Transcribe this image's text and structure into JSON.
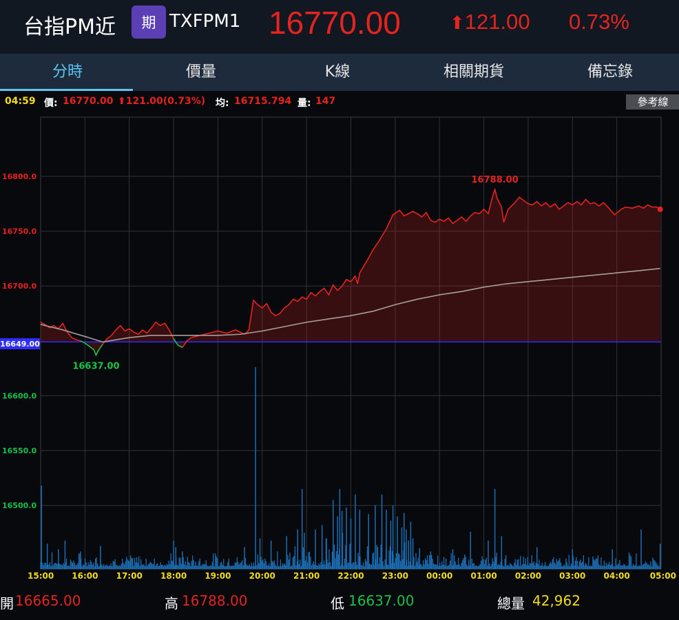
{
  "header": {
    "title": "台指PM近",
    "badge": "期",
    "code": "TXFPM1",
    "price": "16770.00",
    "change": "121.00",
    "change_arrow": "⬆",
    "percent": "0.73%"
  },
  "tabs": [
    {
      "label": "分時",
      "active": true
    },
    {
      "label": "價量"
    },
    {
      "label": "K線"
    },
    {
      "label": "相關期貨"
    },
    {
      "label": "備忘錄"
    }
  ],
  "infobar": {
    "time": "04:59",
    "price_label": "價:",
    "price": "16770.00",
    "change": "⬆121.00(0.73%)",
    "avg_label": "均:",
    "avg": "16715.794",
    "vol_label": "量:",
    "vol": "147",
    "ref_button": "參考線"
  },
  "colors": {
    "up": "#e5231f",
    "down": "#19c24b",
    "avg": "#a89f9a",
    "volume": "#1b6fb6",
    "reference": "#2d2dff"
  },
  "chart_data": {
    "type": "line",
    "x_ticks": [
      "15:00",
      "16:00",
      "17:00",
      "18:00",
      "19:00",
      "20:00",
      "21:00",
      "22:00",
      "23:00",
      "00:00",
      "01:00",
      "02:00",
      "03:00",
      "04:00",
      "05:00"
    ],
    "y_ticks_up": [
      "16800.0",
      "16750.0",
      "16700.0"
    ],
    "y_ticks_down": [
      "16600.0",
      "16550.0",
      "16500.0"
    ],
    "reference": {
      "value": 16649,
      "label": "16649.00"
    },
    "ylim": [
      16442,
      16854
    ],
    "price_series": [
      [
        0,
        16667
      ],
      [
        0.1,
        16665
      ],
      [
        0.2,
        16662
      ],
      [
        0.3,
        16664
      ],
      [
        0.4,
        16661
      ],
      [
        0.5,
        16666
      ],
      [
        0.6,
        16658
      ],
      [
        0.7,
        16653
      ],
      [
        0.8,
        16651
      ],
      [
        0.9,
        16650
      ],
      [
        1.0,
        16648
      ],
      [
        1.1,
        16645
      ],
      [
        1.2,
        16642
      ],
      [
        1.25,
        16637
      ],
      [
        1.3,
        16641
      ],
      [
        1.4,
        16647
      ],
      [
        1.5,
        16652
      ],
      [
        1.6,
        16655
      ],
      [
        1.7,
        16660
      ],
      [
        1.8,
        16664
      ],
      [
        1.9,
        16659
      ],
      [
        2.0,
        16661
      ],
      [
        2.1,
        16658
      ],
      [
        2.2,
        16656
      ],
      [
        2.3,
        16660
      ],
      [
        2.4,
        16657
      ],
      [
        2.5,
        16662
      ],
      [
        2.6,
        16667
      ],
      [
        2.7,
        16664
      ],
      [
        2.8,
        16666
      ],
      [
        2.9,
        16660
      ],
      [
        3.0,
        16652
      ],
      [
        3.1,
        16646
      ],
      [
        3.2,
        16644
      ],
      [
        3.3,
        16650
      ],
      [
        3.4,
        16653
      ],
      [
        3.6,
        16655
      ],
      [
        3.8,
        16657
      ],
      [
        4.0,
        16659
      ],
      [
        4.2,
        16657
      ],
      [
        4.4,
        16660
      ],
      [
        4.6,
        16656
      ],
      [
        4.7,
        16660
      ],
      [
        4.8,
        16687
      ],
      [
        4.9,
        16683
      ],
      [
        5.0,
        16680
      ],
      [
        5.1,
        16684
      ],
      [
        5.2,
        16676
      ],
      [
        5.3,
        16673
      ],
      [
        5.4,
        16675
      ],
      [
        5.5,
        16680
      ],
      [
        5.6,
        16683
      ],
      [
        5.7,
        16688
      ],
      [
        5.8,
        16686
      ],
      [
        5.9,
        16690
      ],
      [
        6.0,
        16688
      ],
      [
        6.1,
        16694
      ],
      [
        6.2,
        16691
      ],
      [
        6.3,
        16695
      ],
      [
        6.4,
        16698
      ],
      [
        6.5,
        16692
      ],
      [
        6.6,
        16701
      ],
      [
        6.7,
        16696
      ],
      [
        6.8,
        16700
      ],
      [
        6.9,
        16706
      ],
      [
        7.0,
        16704
      ],
      [
        7.1,
        16709
      ],
      [
        7.15,
        16702
      ],
      [
        7.2,
        16712
      ],
      [
        7.35,
        16722
      ],
      [
        7.5,
        16733
      ],
      [
        7.65,
        16742
      ],
      [
        7.8,
        16752
      ],
      [
        7.95,
        16765
      ],
      [
        8.1,
        16769
      ],
      [
        8.2,
        16764
      ],
      [
        8.3,
        16766
      ],
      [
        8.4,
        16768
      ],
      [
        8.5,
        16766
      ],
      [
        8.6,
        16763
      ],
      [
        8.7,
        16767
      ],
      [
        8.8,
        16760
      ],
      [
        8.9,
        16758
      ],
      [
        9.0,
        16761
      ],
      [
        9.1,
        16759
      ],
      [
        9.2,
        16762
      ],
      [
        9.3,
        16757
      ],
      [
        9.4,
        16760
      ],
      [
        9.5,
        16763
      ],
      [
        9.6,
        16759
      ],
      [
        9.7,
        16764
      ],
      [
        9.8,
        16767
      ],
      [
        9.9,
        16766
      ],
      [
        10.0,
        16770
      ],
      [
        10.1,
        16766
      ],
      [
        10.2,
        16782
      ],
      [
        10.25,
        16788
      ],
      [
        10.3,
        16780
      ],
      [
        10.4,
        16772
      ],
      [
        10.45,
        16758
      ],
      [
        10.55,
        16770
      ],
      [
        10.7,
        16776
      ],
      [
        10.8,
        16781
      ],
      [
        10.9,
        16778
      ],
      [
        11.0,
        16775
      ],
      [
        11.1,
        16774
      ],
      [
        11.2,
        16777
      ],
      [
        11.3,
        16773
      ],
      [
        11.4,
        16776
      ],
      [
        11.5,
        16772
      ],
      [
        11.6,
        16775
      ],
      [
        11.7,
        16770
      ],
      [
        11.8,
        16773
      ],
      [
        11.9,
        16776
      ],
      [
        12.0,
        16774
      ],
      [
        12.1,
        16777
      ],
      [
        12.2,
        16774
      ],
      [
        12.3,
        16779
      ],
      [
        12.4,
        16775
      ],
      [
        12.5,
        16776
      ],
      [
        12.6,
        16773
      ],
      [
        12.7,
        16776
      ],
      [
        12.8,
        16772
      ],
      [
        12.95,
        16765
      ],
      [
        13.1,
        16770
      ],
      [
        13.2,
        16772
      ],
      [
        13.35,
        16771
      ],
      [
        13.5,
        16773
      ],
      [
        13.6,
        16771
      ],
      [
        13.7,
        16774
      ],
      [
        13.8,
        16772
      ],
      [
        13.9,
        16772
      ],
      [
        13.98,
        16770
      ]
    ],
    "avg_series": [
      [
        0,
        16665
      ],
      [
        0.5,
        16660
      ],
      [
        1.0,
        16654
      ],
      [
        1.4,
        16649
      ],
      [
        2.0,
        16653
      ],
      [
        2.5,
        16655
      ],
      [
        3.0,
        16655
      ],
      [
        3.5,
        16655
      ],
      [
        4.0,
        16655
      ],
      [
        4.5,
        16656
      ],
      [
        5.0,
        16659
      ],
      [
        5.5,
        16663
      ],
      [
        6.0,
        16667
      ],
      [
        6.5,
        16670
      ],
      [
        7.0,
        16673
      ],
      [
        7.5,
        16677
      ],
      [
        8.0,
        16683
      ],
      [
        8.5,
        16688
      ],
      [
        9.0,
        16692
      ],
      [
        9.5,
        16695
      ],
      [
        10.0,
        16699
      ],
      [
        10.5,
        16702
      ],
      [
        11.0,
        16704
      ],
      [
        11.5,
        16706
      ],
      [
        12.0,
        16708
      ],
      [
        12.5,
        16710
      ],
      [
        13.0,
        16712
      ],
      [
        13.5,
        16714
      ],
      [
        13.98,
        16716
      ]
    ],
    "high": {
      "value": 16788,
      "label": "16788.00",
      "x": 10.25
    },
    "low": {
      "value": 16637,
      "label": "16637.00",
      "x": 1.25
    },
    "volume_spikes": [
      [
        0.02,
        16518
      ],
      [
        0.15,
        16465
      ],
      [
        0.4,
        16460
      ],
      [
        0.55,
        16468
      ],
      [
        0.9,
        16458
      ],
      [
        1.35,
        16463
      ],
      [
        3.0,
        16468
      ],
      [
        3.05,
        16462
      ],
      [
        3.2,
        16458
      ],
      [
        4.85,
        16626
      ],
      [
        4.6,
        16462
      ],
      [
        4.95,
        16470
      ],
      [
        5.2,
        16468
      ],
      [
        5.55,
        16472
      ],
      [
        5.8,
        16478
      ],
      [
        5.9,
        16515
      ],
      [
        5.95,
        16475
      ],
      [
        6.2,
        16478
      ],
      [
        6.35,
        16482
      ],
      [
        6.45,
        16470
      ],
      [
        6.6,
        16505
      ],
      [
        6.7,
        16490
      ],
      [
        6.75,
        16515
      ],
      [
        6.8,
        16495
      ],
      [
        6.9,
        16498
      ],
      [
        7.0,
        16488
      ],
      [
        7.1,
        16510
      ],
      [
        7.2,
        16496
      ],
      [
        7.4,
        16492
      ],
      [
        7.55,
        16500
      ],
      [
        7.7,
        16510
      ],
      [
        7.8,
        16496
      ],
      [
        7.9,
        16486
      ],
      [
        7.95,
        16500
      ],
      [
        8.05,
        16490
      ],
      [
        8.15,
        16480
      ],
      [
        8.2,
        16493
      ],
      [
        8.25,
        16478
      ],
      [
        8.3,
        16468
      ],
      [
        8.35,
        16485
      ],
      [
        8.4,
        16470
      ],
      [
        8.55,
        16461
      ],
      [
        8.8,
        16458
      ],
      [
        9.3,
        16460
      ],
      [
        9.7,
        16476
      ],
      [
        10.1,
        16468
      ],
      [
        10.25,
        16515
      ],
      [
        10.4,
        16472
      ],
      [
        11.2,
        16462
      ],
      [
        12.0,
        16460
      ],
      [
        12.9,
        16460
      ],
      [
        13.55,
        16478
      ],
      [
        13.98,
        16465
      ]
    ]
  },
  "footer": {
    "open_label": "開",
    "open": "16665.00",
    "high_label": "高",
    "high": "16788.00",
    "low_label": "低",
    "low": "16637.00",
    "vol_label": "總量",
    "vol": "42,962"
  }
}
